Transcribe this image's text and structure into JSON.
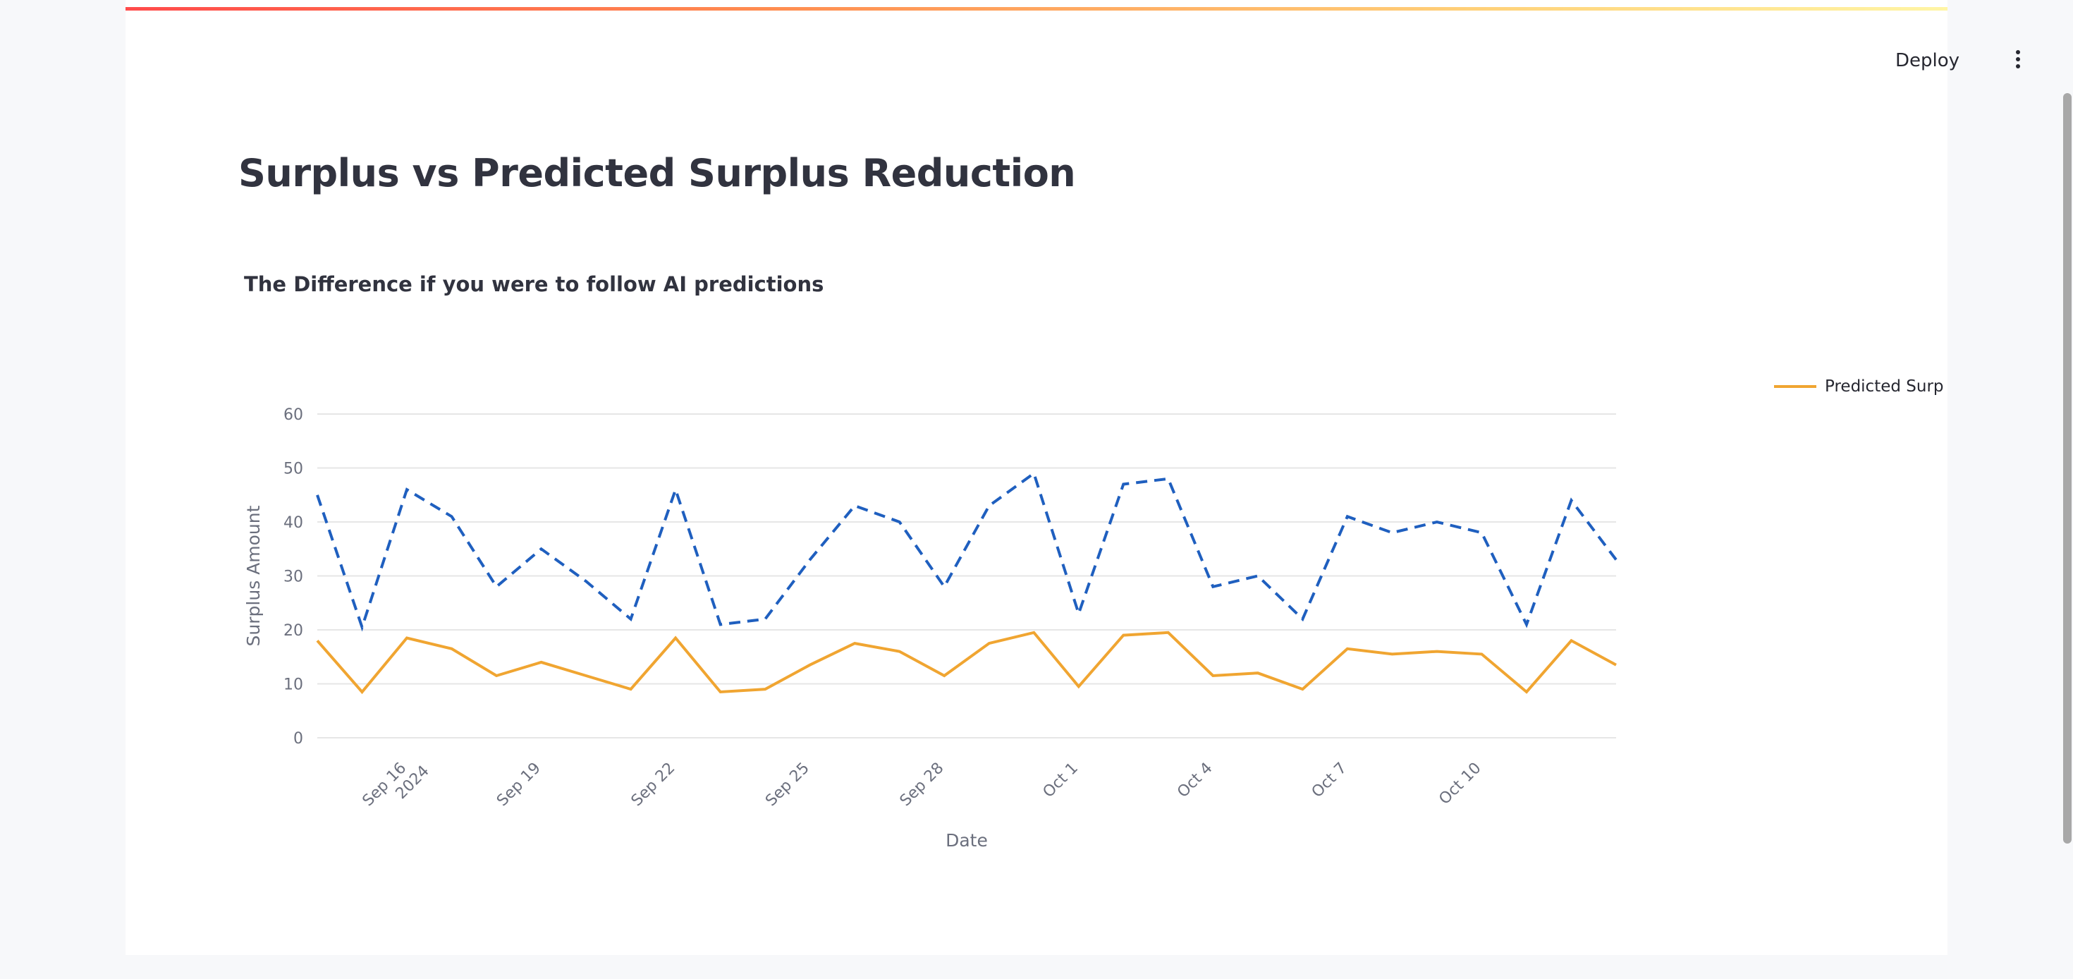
{
  "toolbar": {
    "deploy_label": "Deploy",
    "menu_icon": "more-vertical-icon"
  },
  "page": {
    "title": "Surplus vs Predicted Surplus Reduction"
  },
  "colors": {
    "actual": "#1f5fbf",
    "predicted": "#f0a531",
    "grid": "#e6e6e6",
    "axis_text": "#6b6f7d"
  },
  "chart_data": {
    "type": "line",
    "title": "The Difference if you were to follow AI predictions",
    "xlabel": "Date",
    "ylabel": "Surplus Amount",
    "ylim": [
      0,
      60
    ],
    "yticks": [
      0,
      10,
      20,
      30,
      40,
      50,
      60
    ],
    "xlim": [
      "2024-09-13",
      "2024-10-12"
    ],
    "xticks": [
      {
        "date": "2024-09-15",
        "label": "Sep 16",
        "sublabel": "2024"
      },
      {
        "date": "2024-09-18",
        "label": "Sep 19"
      },
      {
        "date": "2024-09-21",
        "label": "Sep 22"
      },
      {
        "date": "2024-09-24",
        "label": "Sep 25"
      },
      {
        "date": "2024-09-27",
        "label": "Sep 28"
      },
      {
        "date": "2024-09-30",
        "label": "Oct 1"
      },
      {
        "date": "2024-10-03",
        "label": "Oct 4"
      },
      {
        "date": "2024-10-06",
        "label": "Oct 7"
      },
      {
        "date": "2024-10-09",
        "label": "Oct 10"
      }
    ],
    "legend": {
      "position": "top-right"
    },
    "grid": true,
    "x": [
      "2024-09-13",
      "2024-09-14",
      "2024-09-15",
      "2024-09-16",
      "2024-09-17",
      "2024-09-18",
      "2024-09-19",
      "2024-09-20",
      "2024-09-21",
      "2024-09-22",
      "2024-09-23",
      "2024-09-24",
      "2024-09-25",
      "2024-09-26",
      "2024-09-27",
      "2024-09-28",
      "2024-09-29",
      "2024-09-30",
      "2024-10-01",
      "2024-10-02",
      "2024-10-03",
      "2024-10-04",
      "2024-10-05",
      "2024-10-06",
      "2024-10-07",
      "2024-10-08",
      "2024-10-09",
      "2024-10-10",
      "2024-10-11",
      "2024-10-12"
    ],
    "series": [
      {
        "key": "actual",
        "style": "dashed",
        "values": [
          45,
          20.5,
          46,
          41,
          28,
          35,
          29,
          22,
          46,
          21,
          22,
          33,
          43,
          40,
          28,
          43,
          49,
          23,
          47,
          48,
          28,
          30,
          22,
          41,
          38,
          40,
          38,
          21,
          44,
          33
        ]
      },
      {
        "name": "Predicted Surplu",
        "key": "predicted",
        "style": "solid",
        "values": [
          18,
          8.5,
          18.5,
          16.5,
          11.5,
          14,
          11.5,
          9,
          18.5,
          8.5,
          9,
          13.5,
          17.5,
          16,
          11.5,
          17.5,
          19.5,
          9.5,
          19,
          19.5,
          11.5,
          12,
          9,
          16.5,
          15.5,
          16,
          15.5,
          8.5,
          18,
          13.5
        ]
      }
    ]
  }
}
